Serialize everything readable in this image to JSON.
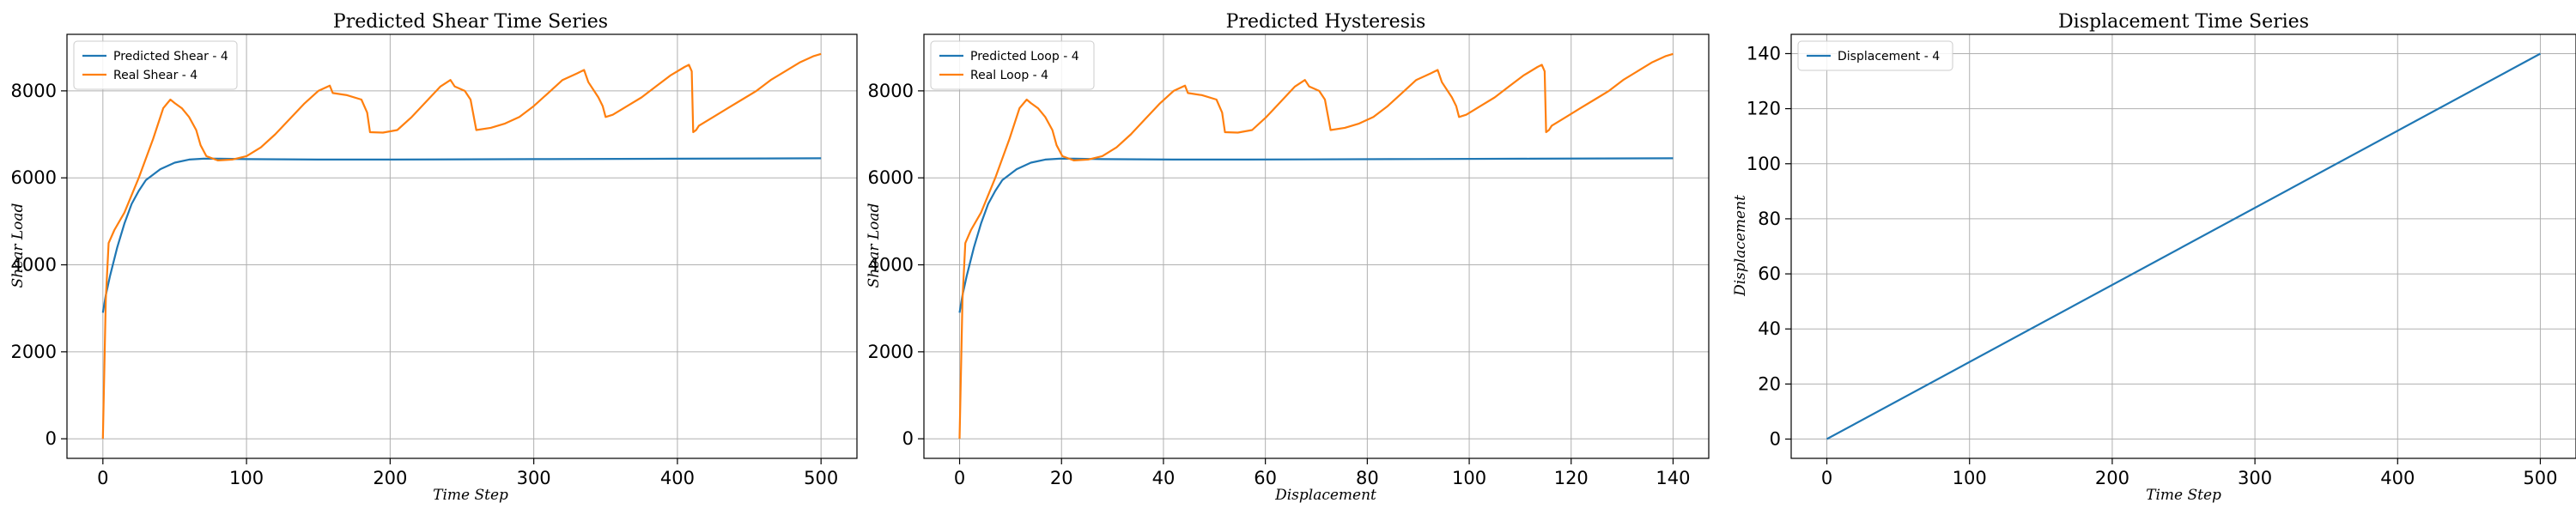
{
  "colors": {
    "blue": "#1f77b4",
    "orange": "#ff7f0e",
    "grid": "#b0b0b0"
  },
  "chart_data": [
    {
      "type": "line",
      "title": "Predicted Shear Time Series",
      "xlabel": "Time Step",
      "ylabel": "Shear Load",
      "xlim": [
        -25,
        525
      ],
      "ylim": [
        -450,
        9300
      ],
      "xticks": [
        0,
        100,
        200,
        300,
        400,
        500
      ],
      "yticks": [
        0,
        2000,
        4000,
        6000,
        8000
      ],
      "grid": true,
      "legend_position": "top-left",
      "series": [
        {
          "name": "Predicted Shear - 4",
          "color": "#1f77b4",
          "points": [
            [
              0,
              2900
            ],
            [
              2,
              3300
            ],
            [
              5,
              3750
            ],
            [
              10,
              4400
            ],
            [
              15,
              4950
            ],
            [
              20,
              5400
            ],
            [
              25,
              5700
            ],
            [
              30,
              5950
            ],
            [
              40,
              6200
            ],
            [
              50,
              6350
            ],
            [
              60,
              6420
            ],
            [
              70,
              6440
            ],
            [
              80,
              6440
            ],
            [
              100,
              6430
            ],
            [
              150,
              6420
            ],
            [
              200,
              6420
            ],
            [
              300,
              6430
            ],
            [
              400,
              6440
            ],
            [
              500,
              6450
            ]
          ]
        },
        {
          "name": "Real Shear - 4",
          "color": "#ff7f0e",
          "points": [
            [
              0,
              0
            ],
            [
              2,
              3200
            ],
            [
              4,
              4500
            ],
            [
              8,
              4800
            ],
            [
              15,
              5200
            ],
            [
              25,
              6000
            ],
            [
              35,
              6900
            ],
            [
              42,
              7600
            ],
            [
              47,
              7800
            ],
            [
              50,
              7720
            ],
            [
              55,
              7600
            ],
            [
              60,
              7400
            ],
            [
              65,
              7100
            ],
            [
              68,
              6750
            ],
            [
              72,
              6500
            ],
            [
              80,
              6400
            ],
            [
              90,
              6420
            ],
            [
              100,
              6500
            ],
            [
              110,
              6700
            ],
            [
              120,
              7000
            ],
            [
              130,
              7350
            ],
            [
              140,
              7700
            ],
            [
              150,
              8000
            ],
            [
              158,
              8120
            ],
            [
              160,
              7950
            ],
            [
              170,
              7900
            ],
            [
              180,
              7800
            ],
            [
              184,
              7500
            ],
            [
              186,
              7050
            ],
            [
              195,
              7040
            ],
            [
              205,
              7100
            ],
            [
              215,
              7400
            ],
            [
              225,
              7750
            ],
            [
              235,
              8100
            ],
            [
              242,
              8250
            ],
            [
              245,
              8100
            ],
            [
              252,
              8000
            ],
            [
              256,
              7800
            ],
            [
              260,
              7100
            ],
            [
              270,
              7150
            ],
            [
              280,
              7250
            ],
            [
              290,
              7400
            ],
            [
              300,
              7650
            ],
            [
              310,
              7950
            ],
            [
              320,
              8250
            ],
            [
              330,
              8400
            ],
            [
              335,
              8480
            ],
            [
              338,
              8200
            ],
            [
              342,
              8000
            ],
            [
              345,
              7850
            ],
            [
              348,
              7650
            ],
            [
              350,
              7400
            ],
            [
              355,
              7450
            ],
            [
              365,
              7650
            ],
            [
              375,
              7850
            ],
            [
              385,
              8100
            ],
            [
              395,
              8350
            ],
            [
              405,
              8550
            ],
            [
              408,
              8600
            ],
            [
              410,
              8450
            ],
            [
              411,
              7050
            ],
            [
              413,
              7100
            ],
            [
              415,
              7200
            ],
            [
              425,
              7400
            ],
            [
              435,
              7600
            ],
            [
              445,
              7800
            ],
            [
              455,
              8000
            ],
            [
              465,
              8250
            ],
            [
              475,
              8450
            ],
            [
              485,
              8650
            ],
            [
              495,
              8800
            ],
            [
              500,
              8850
            ]
          ]
        }
      ]
    },
    {
      "type": "line",
      "title": "Predicted Hysteresis",
      "xlabel": "Displacement",
      "ylabel": "Shear Load",
      "xlim": [
        -7,
        147
      ],
      "ylim": [
        -450,
        9300
      ],
      "xticks": [
        0,
        20,
        40,
        60,
        80,
        100,
        120,
        140
      ],
      "yticks": [
        0,
        2000,
        4000,
        6000,
        8000
      ],
      "grid": true,
      "legend_position": "top-left",
      "series": [
        {
          "name": "Predicted Loop - 4",
          "color": "#1f77b4",
          "points": [
            [
              0,
              2900
            ],
            [
              0.56,
              3300
            ],
            [
              1.4,
              3750
            ],
            [
              2.8,
              4400
            ],
            [
              4.2,
              4950
            ],
            [
              5.6,
              5400
            ],
            [
              7,
              5700
            ],
            [
              8.4,
              5950
            ],
            [
              11.2,
              6200
            ],
            [
              14,
              6350
            ],
            [
              16.8,
              6420
            ],
            [
              19.6,
              6440
            ],
            [
              22.4,
              6440
            ],
            [
              28,
              6430
            ],
            [
              42,
              6420
            ],
            [
              56,
              6420
            ],
            [
              84,
              6430
            ],
            [
              112,
              6440
            ],
            [
              140,
              6450
            ]
          ]
        },
        {
          "name": "Real Loop - 4",
          "color": "#ff7f0e",
          "points": [
            [
              0,
              0
            ],
            [
              0.56,
              3200
            ],
            [
              1.12,
              4500
            ],
            [
              2.24,
              4800
            ],
            [
              4.2,
              5200
            ],
            [
              7,
              6000
            ],
            [
              9.8,
              6900
            ],
            [
              11.76,
              7600
            ],
            [
              13.16,
              7800
            ],
            [
              14,
              7720
            ],
            [
              15.4,
              7600
            ],
            [
              16.8,
              7400
            ],
            [
              18.2,
              7100
            ],
            [
              19.04,
              6750
            ],
            [
              20.16,
              6500
            ],
            [
              22.4,
              6400
            ],
            [
              25.2,
              6420
            ],
            [
              28,
              6500
            ],
            [
              30.8,
              6700
            ],
            [
              33.6,
              7000
            ],
            [
              36.4,
              7350
            ],
            [
              39.2,
              7700
            ],
            [
              42,
              8000
            ],
            [
              44.24,
              8120
            ],
            [
              44.8,
              7950
            ],
            [
              47.6,
              7900
            ],
            [
              50.4,
              7800
            ],
            [
              51.52,
              7500
            ],
            [
              52.08,
              7050
            ],
            [
              54.6,
              7040
            ],
            [
              57.4,
              7100
            ],
            [
              60.2,
              7400
            ],
            [
              63,
              7750
            ],
            [
              65.8,
              8100
            ],
            [
              67.76,
              8250
            ],
            [
              68.6,
              8100
            ],
            [
              70.56,
              8000
            ],
            [
              71.68,
              7800
            ],
            [
              72.8,
              7100
            ],
            [
              75.6,
              7150
            ],
            [
              78.4,
              7250
            ],
            [
              81.2,
              7400
            ],
            [
              84,
              7650
            ],
            [
              86.8,
              7950
            ],
            [
              89.6,
              8250
            ],
            [
              92.4,
              8400
            ],
            [
              93.8,
              8480
            ],
            [
              94.64,
              8200
            ],
            [
              95.76,
              8000
            ],
            [
              96.6,
              7850
            ],
            [
              97.44,
              7650
            ],
            [
              98,
              7400
            ],
            [
              99.4,
              7450
            ],
            [
              102.2,
              7650
            ],
            [
              105,
              7850
            ],
            [
              107.8,
              8100
            ],
            [
              110.6,
              8350
            ],
            [
              113.4,
              8550
            ],
            [
              114.24,
              8600
            ],
            [
              114.8,
              8450
            ],
            [
              115.08,
              7050
            ],
            [
              115.64,
              7100
            ],
            [
              116.2,
              7200
            ],
            [
              119,
              7400
            ],
            [
              121.8,
              7600
            ],
            [
              124.6,
              7800
            ],
            [
              127.4,
              8000
            ],
            [
              130.2,
              8250
            ],
            [
              133,
              8450
            ],
            [
              135.8,
              8650
            ],
            [
              138.6,
              8800
            ],
            [
              140,
              8850
            ]
          ]
        }
      ]
    },
    {
      "type": "line",
      "title": "Displacement Time Series",
      "xlabel": "Time Step",
      "ylabel": "Displacement",
      "xlim": [
        -25,
        525
      ],
      "ylim": [
        -7,
        147
      ],
      "xticks": [
        0,
        100,
        200,
        300,
        400,
        500
      ],
      "yticks": [
        0,
        20,
        40,
        60,
        80,
        100,
        120,
        140
      ],
      "grid": true,
      "legend_position": "top-left",
      "series": [
        {
          "name": "Displacement - 4",
          "color": "#1f77b4",
          "points": [
            [
              0,
              0
            ],
            [
              500,
              140
            ]
          ]
        }
      ]
    }
  ]
}
